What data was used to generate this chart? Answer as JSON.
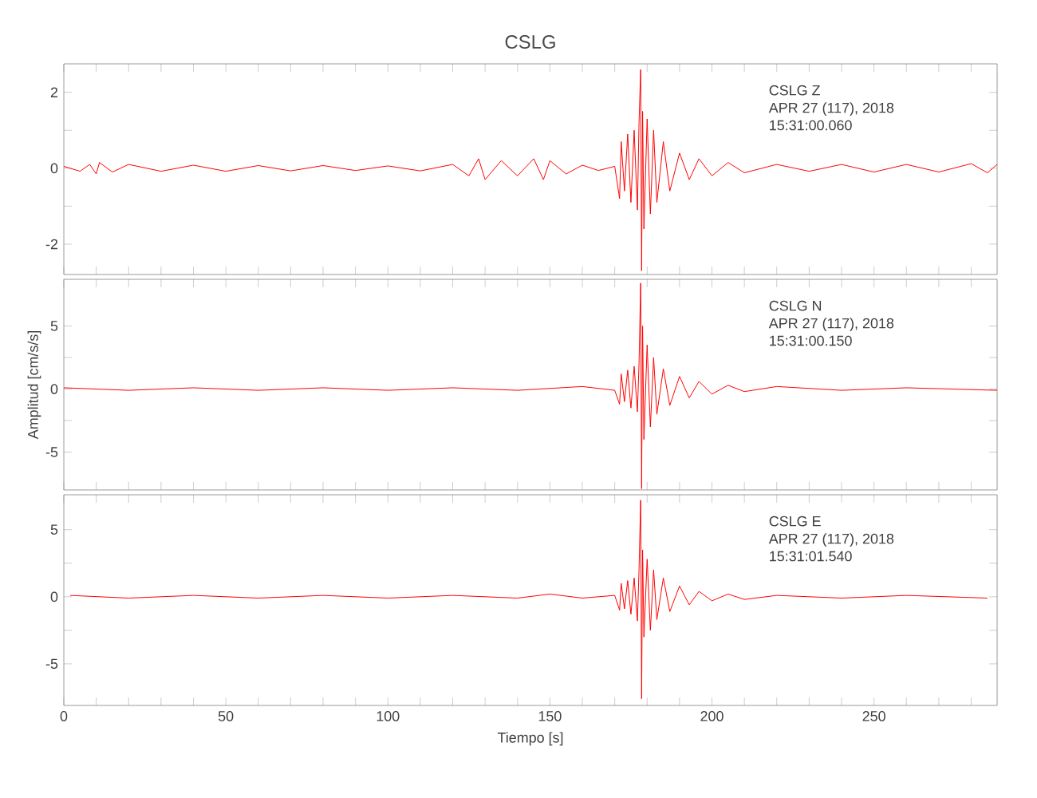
{
  "chart_data": [
    {
      "type": "line",
      "title": "CSLG",
      "tick_labels": "y",
      "xlim": [
        0,
        288
      ],
      "xticks": [
        0,
        {
          "value": 10,
          "label": null
        },
        {
          "value": 20,
          "label": null
        },
        {
          "value": 30,
          "label": null
        },
        {
          "value": 40,
          "label": null
        },
        50,
        {
          "value": 60,
          "label": null
        },
        {
          "value": 70,
          "label": null
        },
        {
          "value": 80,
          "label": null
        },
        {
          "value": 90,
          "label": null
        },
        100,
        {
          "value": 110,
          "label": null
        },
        {
          "value": 120,
          "label": null
        },
        {
          "value": 130,
          "label": null
        },
        {
          "value": 140,
          "label": null
        },
        150,
        {
          "value": 160,
          "label": null
        },
        {
          "value": 170,
          "label": null
        },
        {
          "value": 180,
          "label": null
        },
        {
          "value": 190,
          "label": null
        },
        200,
        {
          "value": 210,
          "label": null
        },
        {
          "value": 220,
          "label": null
        },
        {
          "value": 230,
          "label": null
        },
        {
          "value": 240,
          "label": null
        },
        250,
        {
          "value": 260,
          "label": null
        },
        {
          "value": 270,
          "label": null
        },
        {
          "value": 280,
          "label": null
        }
      ],
      "ylim": [
        -2.8,
        2.75
      ],
      "yticks": [
        -2,
        {
          "value": -1,
          "label": null
        },
        0,
        {
          "value": 1,
          "label": null
        },
        2
      ],
      "annotations": [
        "CSLG   Z",
        "APR 27 (117), 2018",
        "15:31:00.060"
      ],
      "series": [
        {
          "color": "#ff0000",
          "x": [
            0,
            5,
            8,
            10,
            11,
            15,
            20,
            30,
            40,
            50,
            60,
            70,
            80,
            90,
            100,
            110,
            120,
            125,
            128,
            130,
            135,
            140,
            145,
            148,
            150,
            155,
            160,
            165,
            170,
            171.5,
            172,
            173,
            174,
            175,
            176,
            177,
            177.5,
            178,
            178.3,
            178.6,
            179,
            180,
            181,
            182,
            183,
            185,
            187,
            190,
            193,
            196,
            200,
            205,
            210,
            220,
            230,
            240,
            250,
            260,
            270,
            280,
            285,
            288
          ],
          "values": [
            0.05,
            -0.08,
            0.1,
            -0.15,
            0.15,
            -0.1,
            0.1,
            -0.08,
            0.08,
            -0.08,
            0.07,
            -0.07,
            0.07,
            -0.06,
            0.06,
            -0.07,
            0.1,
            -0.2,
            0.25,
            -0.3,
            0.2,
            -0.2,
            0.25,
            -0.3,
            0.2,
            -0.15,
            0.08,
            -0.06,
            0.05,
            -0.8,
            0.7,
            -0.6,
            0.9,
            -0.9,
            1.0,
            -1.1,
            1.2,
            2.6,
            -2.7,
            1.5,
            -1.6,
            1.3,
            -1.2,
            1.0,
            -0.9,
            0.7,
            -0.6,
            0.4,
            -0.3,
            0.25,
            -0.2,
            0.15,
            -0.12,
            0.1,
            -0.08,
            0.1,
            -0.1,
            0.1,
            -0.1,
            0.12,
            -0.12,
            0.1
          ]
        }
      ]
    },
    {
      "type": "line",
      "ylabel": "Amplitud [cm/s/s]",
      "tick_labels": "y",
      "xlim": [
        0,
        288
      ],
      "xticks": [
        0,
        {
          "value": 10,
          "label": null
        },
        {
          "value": 20,
          "label": null
        },
        {
          "value": 30,
          "label": null
        },
        {
          "value": 40,
          "label": null
        },
        50,
        {
          "value": 60,
          "label": null
        },
        {
          "value": 70,
          "label": null
        },
        {
          "value": 80,
          "label": null
        },
        {
          "value": 90,
          "label": null
        },
        100,
        {
          "value": 110,
          "label": null
        },
        {
          "value": 120,
          "label": null
        },
        {
          "value": 130,
          "label": null
        },
        {
          "value": 140,
          "label": null
        },
        150,
        {
          "value": 160,
          "label": null
        },
        {
          "value": 170,
          "label": null
        },
        {
          "value": 180,
          "label": null
        },
        {
          "value": 190,
          "label": null
        },
        200,
        {
          "value": 210,
          "label": null
        },
        {
          "value": 220,
          "label": null
        },
        {
          "value": 230,
          "label": null
        },
        {
          "value": 240,
          "label": null
        },
        250,
        {
          "value": 260,
          "label": null
        },
        {
          "value": 270,
          "label": null
        },
        {
          "value": 280,
          "label": null
        }
      ],
      "ylim": [
        -8.0,
        8.7
      ],
      "yticks": [
        -5,
        {
          "value": -2.5,
          "label": null
        },
        0,
        {
          "value": 2.5,
          "label": null
        },
        5
      ],
      "annotations": [
        "CSLG   N",
        "APR 27 (117), 2018",
        "15:31:00.150"
      ],
      "series": [
        {
          "color": "#ff0000",
          "x": [
            0,
            20,
            40,
            60,
            80,
            100,
            120,
            140,
            160,
            170,
            171.5,
            172,
            173,
            174,
            175,
            176,
            177,
            177.5,
            178,
            178.3,
            178.6,
            179,
            180,
            181,
            182,
            183,
            185,
            187,
            190,
            193,
            196,
            200,
            205,
            210,
            220,
            240,
            260,
            288
          ],
          "values": [
            0.1,
            -0.1,
            0.1,
            -0.1,
            0.1,
            -0.1,
            0.1,
            -0.1,
            0.2,
            -0.1,
            -1.2,
            1.2,
            -1.0,
            1.5,
            -1.5,
            1.8,
            -1.8,
            2.0,
            8.4,
            -7.9,
            5.0,
            -4.0,
            3.5,
            -3.0,
            2.5,
            -2.0,
            1.6,
            -1.3,
            1.0,
            -0.7,
            0.6,
            -0.4,
            0.3,
            -0.2,
            0.2,
            -0.1,
            0.1,
            -0.1
          ]
        }
      ]
    },
    {
      "type": "line",
      "xlabel": "Tiempo [s]",
      "xlim": [
        0,
        288
      ],
      "xticks": [
        0,
        {
          "value": 10,
          "label": null
        },
        {
          "value": 20,
          "label": null
        },
        {
          "value": 30,
          "label": null
        },
        {
          "value": 40,
          "label": null
        },
        50,
        {
          "value": 60,
          "label": null
        },
        {
          "value": 70,
          "label": null
        },
        {
          "value": 80,
          "label": null
        },
        {
          "value": 90,
          "label": null
        },
        100,
        {
          "value": 110,
          "label": null
        },
        {
          "value": 120,
          "label": null
        },
        {
          "value": 130,
          "label": null
        },
        {
          "value": 140,
          "label": null
        },
        150,
        {
          "value": 160,
          "label": null
        },
        {
          "value": 170,
          "label": null
        },
        {
          "value": 180,
          "label": null
        },
        {
          "value": 190,
          "label": null
        },
        200,
        {
          "value": 210,
          "label": null
        },
        {
          "value": 220,
          "label": null
        },
        {
          "value": 230,
          "label": null
        },
        {
          "value": 240,
          "label": null
        },
        250,
        {
          "value": 260,
          "label": null
        },
        {
          "value": 270,
          "label": null
        },
        {
          "value": 280,
          "label": null
        }
      ],
      "ylim": [
        -8.1,
        7.6
      ],
      "yticks": [
        -5,
        {
          "value": -2.5,
          "label": null
        },
        0,
        {
          "value": 2.5,
          "label": null
        },
        5
      ],
      "annotations": [
        "CSLG   E",
        "APR 27 (117), 2018",
        "15:31:01.540"
      ],
      "series": [
        {
          "color": "#ff0000",
          "x": [
            2,
            20,
            40,
            60,
            80,
            100,
            120,
            140,
            150,
            160,
            170,
            171.5,
            172,
            173,
            174,
            175,
            176,
            177,
            177.5,
            178,
            178.3,
            178.6,
            179,
            180,
            181,
            182,
            183,
            185,
            187,
            190,
            193,
            196,
            200,
            205,
            210,
            220,
            240,
            260,
            285
          ],
          "values": [
            0.1,
            -0.1,
            0.1,
            -0.1,
            0.1,
            -0.1,
            0.1,
            -0.1,
            0.2,
            -0.1,
            0.1,
            -1.0,
            1.0,
            -0.9,
            1.2,
            -1.3,
            1.4,
            -1.8,
            2.0,
            7.2,
            -7.6,
            3.5,
            -3.0,
            2.8,
            -2.5,
            2.0,
            -1.7,
            1.4,
            -1.1,
            0.8,
            -0.6,
            0.4,
            -0.3,
            0.2,
            -0.2,
            0.1,
            -0.1,
            0.1,
            -0.1
          ]
        }
      ]
    }
  ]
}
